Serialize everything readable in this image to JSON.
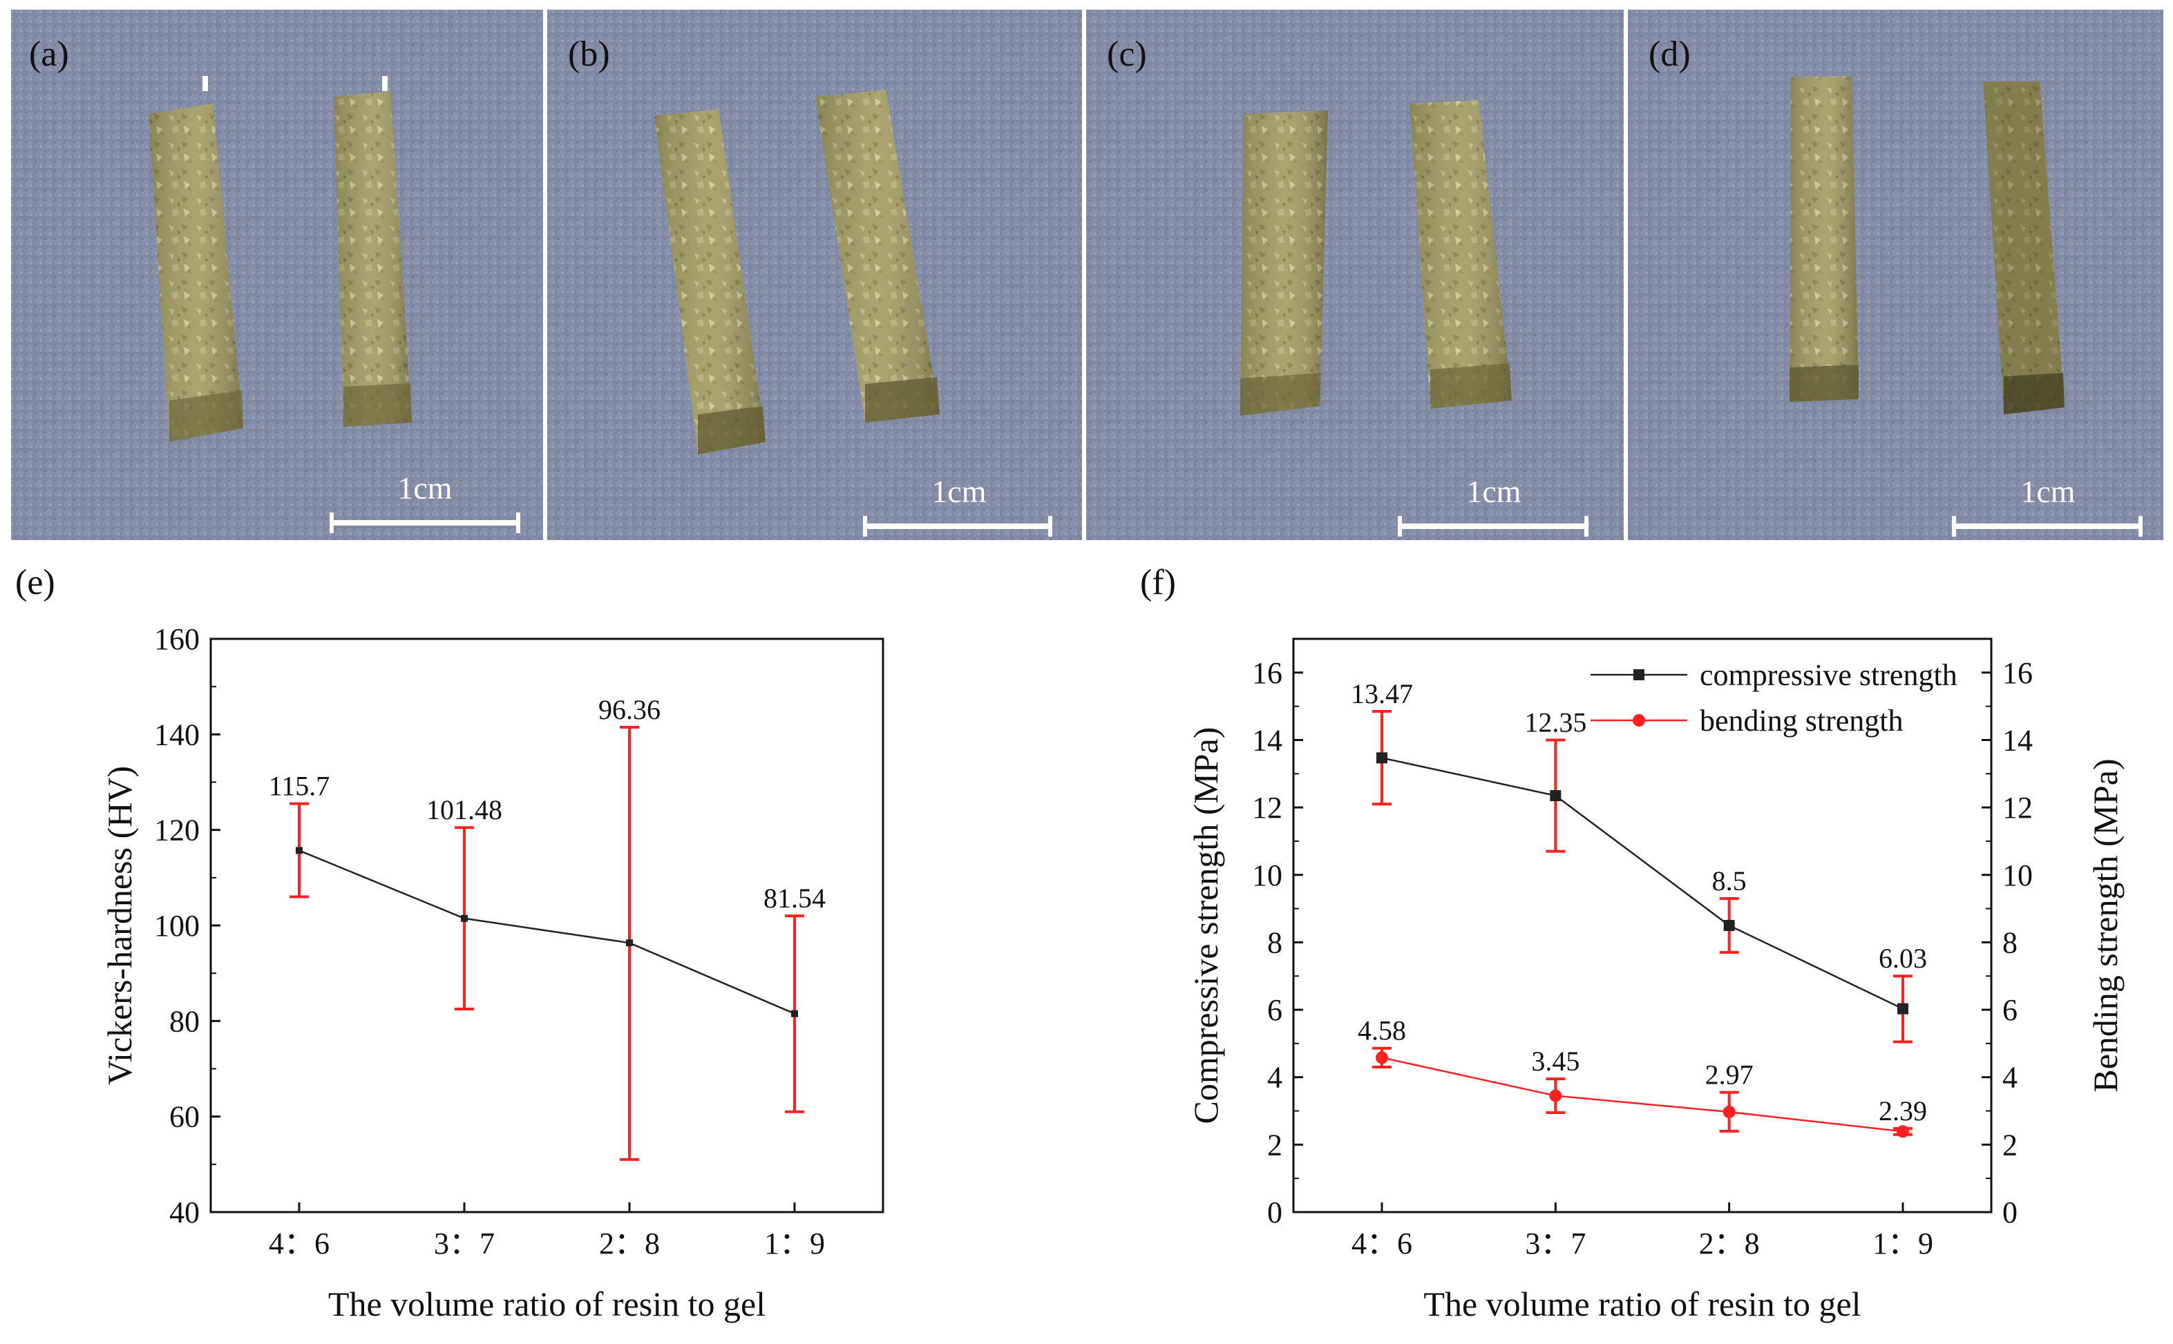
{
  "photos": [
    {
      "label": "(a)",
      "scale_label": "1cm"
    },
    {
      "label": "(b)",
      "scale_label": "1cm"
    },
    {
      "label": "(c)",
      "scale_label": "1cm"
    },
    {
      "label": "(d)",
      "scale_label": "1cm"
    }
  ],
  "colors": {
    "series_main": "#222222",
    "series_red": "#ff2020",
    "cloth": "#8590a8",
    "specimen": "#a09a62"
  },
  "chart_data": [
    {
      "panel_label": "(e)",
      "type": "line",
      "categories": [
        "4：6",
        "3：7",
        "2：8",
        "1：9"
      ],
      "xlabel": "The volume ratio of resin to gel",
      "ylabel": "Vickers-hardness (HV)",
      "ylim": [
        40,
        160
      ],
      "yticks": [
        40,
        60,
        80,
        100,
        120,
        140,
        160
      ],
      "series": [
        {
          "values": [
            115.7,
            101.48,
            96.36,
            81.54
          ],
          "labels": [
            "115.7",
            "101.48",
            "96.36",
            "81.54"
          ],
          "error_low": [
            106,
            82.5,
            51,
            61
          ],
          "error_high": [
            125.5,
            120.5,
            141.5,
            102
          ],
          "color": "#222222",
          "error_color": "#ff2020"
        }
      ]
    },
    {
      "panel_label": "(f)",
      "type": "line",
      "categories": [
        "4：6",
        "3：7",
        "2：8",
        "1：9"
      ],
      "xlabel": "The volume ratio of resin to gel",
      "ylabel": "Compressive strength (MPa)",
      "ylabel_right": "Bending strength (MPa)",
      "ylim": [
        0,
        17
      ],
      "yticks": [
        0,
        2,
        4,
        6,
        8,
        10,
        12,
        14,
        16
      ],
      "legend_position": "top-right",
      "series": [
        {
          "name": "compressive strength",
          "values": [
            13.47,
            12.35,
            8.5,
            6.03
          ],
          "labels": [
            "13.47",
            "12.35",
            "8.5",
            "6.03"
          ],
          "error_low": [
            12.1,
            10.7,
            7.7,
            5.05
          ],
          "error_high": [
            14.85,
            14.0,
            9.3,
            7.0
          ],
          "marker": "square",
          "color": "#222222",
          "error_color": "#ff2020"
        },
        {
          "name": "bending strength",
          "values": [
            4.58,
            3.45,
            2.97,
            2.39
          ],
          "labels": [
            "4.58",
            "3.45",
            "2.97",
            "2.39"
          ],
          "error_low": [
            4.3,
            2.95,
            2.4,
            2.3
          ],
          "error_high": [
            4.86,
            3.95,
            3.55,
            2.48
          ],
          "marker": "circle",
          "color": "#ff2020",
          "error_color": "#ff2020"
        }
      ]
    }
  ]
}
